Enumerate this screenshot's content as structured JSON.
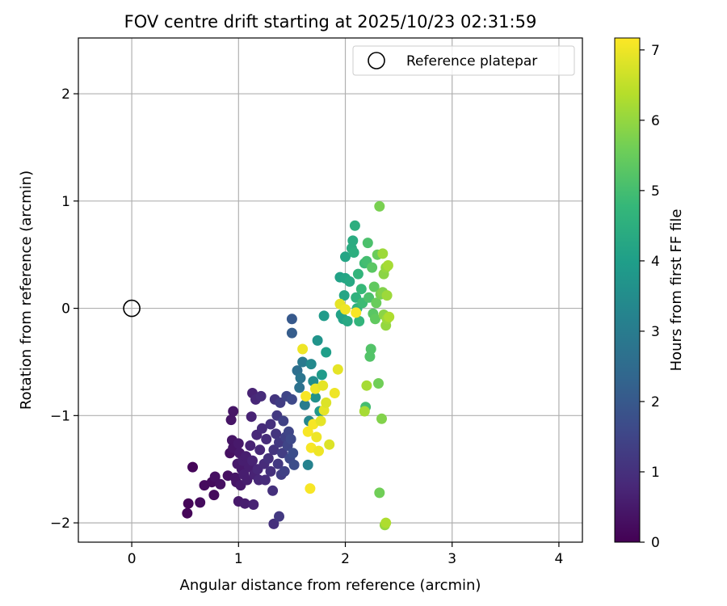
{
  "chart_data": {
    "type": "scatter",
    "title": "FOV centre drift starting at 2025/10/23 02:31:59",
    "xlabel": "Angular distance from reference (arcmin)",
    "ylabel": "Rotation from reference (arcmin)",
    "xlim": [
      -0.5,
      4.22
    ],
    "ylim": [
      -2.18,
      2.52
    ],
    "xticks": [
      0,
      1,
      2,
      3,
      4
    ],
    "xtick_labels": [
      "0",
      "1",
      "2",
      "3",
      "4"
    ],
    "yticks": [
      -2,
      -1,
      0,
      1,
      2
    ],
    "ytick_labels": [
      "−2",
      "−1",
      "0",
      "1",
      "2"
    ],
    "grid": true,
    "legend": {
      "position": "top-right",
      "entries": [
        {
          "label": "Reference platepar",
          "marker": "open-circle"
        }
      ]
    },
    "reference_point": {
      "x": 0,
      "y": 0
    },
    "colorbar": {
      "label": "Hours from first FF file",
      "colormap": "viridis",
      "range": [
        0,
        7.17
      ],
      "ticks": [
        0,
        1,
        2,
        3,
        4,
        5,
        6,
        7
      ],
      "tick_labels": [
        "0",
        "1",
        "2",
        "3",
        "4",
        "5",
        "6",
        "7"
      ],
      "stops": [
        "#440154",
        "#482878",
        "#3e4989",
        "#31688e",
        "#26828e",
        "#1f9e89",
        "#35b779",
        "#6ece58",
        "#b5de2b",
        "#fde725"
      ]
    },
    "series": [
      {
        "name": "FOV centre drift",
        "columns": [
          "x_arcmin",
          "y_arcmin",
          "hours"
        ],
        "points": [
          [
            0.52,
            -1.91,
            0.1
          ],
          [
            0.53,
            -1.82,
            0.1
          ],
          [
            0.57,
            -1.48,
            0.1
          ],
          [
            0.64,
            -1.81,
            0.2
          ],
          [
            0.68,
            -1.65,
            0.2
          ],
          [
            0.75,
            -1.62,
            0.2
          ],
          [
            0.77,
            -1.74,
            0.2
          ],
          [
            0.78,
            -1.57,
            0.3
          ],
          [
            0.83,
            -1.64,
            0.3
          ],
          [
            0.9,
            -1.56,
            0.3
          ],
          [
            0.92,
            -1.35,
            0.3
          ],
          [
            0.93,
            -1.04,
            0.4
          ],
          [
            0.94,
            -1.23,
            0.4
          ],
          [
            0.95,
            -1.3,
            0.4
          ],
          [
            0.95,
            -0.96,
            0.4
          ],
          [
            0.97,
            -1.58,
            0.4
          ],
          [
            0.98,
            -1.62,
            0.4
          ],
          [
            0.99,
            -1.45,
            0.5
          ],
          [
            1.0,
            -1.8,
            0.5
          ],
          [
            1.0,
            -1.26,
            0.5
          ],
          [
            1.01,
            -1.35,
            0.5
          ],
          [
            1.02,
            -1.65,
            0.5
          ],
          [
            1.03,
            -1.5,
            0.5
          ],
          [
            1.04,
            -1.42,
            0.6
          ],
          [
            1.05,
            -1.55,
            0.6
          ],
          [
            1.06,
            -1.82,
            0.6
          ],
          [
            1.07,
            -1.38,
            0.6
          ],
          [
            1.08,
            -1.6,
            0.6
          ],
          [
            1.1,
            -1.48,
            0.6
          ],
          [
            1.11,
            -1.28,
            0.7
          ],
          [
            1.12,
            -1.01,
            0.7
          ],
          [
            1.13,
            -0.79,
            0.7
          ],
          [
            1.13,
            -1.42,
            0.7
          ],
          [
            1.14,
            -1.83,
            0.7
          ],
          [
            1.15,
            -1.55,
            0.7
          ],
          [
            1.16,
            -0.85,
            0.8
          ],
          [
            1.17,
            -1.18,
            0.8
          ],
          [
            1.18,
            -1.5,
            0.8
          ],
          [
            1.19,
            -1.6,
            0.8
          ],
          [
            1.2,
            -1.32,
            0.8
          ],
          [
            1.21,
            -0.82,
            0.9
          ],
          [
            1.22,
            -1.12,
            0.9
          ],
          [
            1.24,
            -1.45,
            0.9
          ],
          [
            1.25,
            -1.6,
            0.9
          ],
          [
            1.26,
            -1.22,
            0.9
          ],
          [
            1.28,
            -1.4,
            1.0
          ],
          [
            1.3,
            -1.08,
            1.0
          ],
          [
            1.3,
            -1.52,
            1.0
          ],
          [
            1.32,
            -1.7,
            1.0
          ],
          [
            1.33,
            -2.01,
            1.0
          ],
          [
            1.33,
            -1.32,
            1.1
          ],
          [
            1.34,
            -0.85,
            1.1
          ],
          [
            1.35,
            -1.17,
            1.1
          ],
          [
            1.36,
            -1.0,
            1.2
          ],
          [
            1.37,
            -1.45,
            1.2
          ],
          [
            1.38,
            -1.94,
            1.2
          ],
          [
            1.38,
            -1.25,
            1.2
          ],
          [
            1.39,
            -0.88,
            1.3
          ],
          [
            1.4,
            -1.55,
            1.3
          ],
          [
            1.41,
            -1.35,
            1.3
          ],
          [
            1.42,
            -1.05,
            1.4
          ],
          [
            1.43,
            -1.52,
            1.4
          ],
          [
            1.44,
            -1.2,
            1.4
          ],
          [
            1.45,
            -0.82,
            1.5
          ],
          [
            1.46,
            -1.28,
            1.5
          ],
          [
            1.47,
            -1.15,
            1.5
          ],
          [
            1.48,
            -1.4,
            1.6
          ],
          [
            1.49,
            -1.22,
            1.6
          ],
          [
            1.5,
            -0.85,
            1.6
          ],
          [
            1.51,
            -1.35,
            1.7
          ],
          [
            1.52,
            -1.46,
            1.7
          ],
          [
            1.5,
            -0.1,
            2.0
          ],
          [
            1.5,
            -0.23,
            2.1
          ],
          [
            1.55,
            -0.58,
            2.6
          ],
          [
            1.57,
            -0.74,
            2.7
          ],
          [
            1.58,
            -0.65,
            2.8
          ],
          [
            1.6,
            -0.5,
            2.9
          ],
          [
            1.62,
            -0.9,
            3.0
          ],
          [
            1.65,
            -1.46,
            3.2
          ],
          [
            1.66,
            -1.05,
            3.3
          ],
          [
            1.68,
            -0.52,
            3.4
          ],
          [
            1.7,
            -0.68,
            3.5
          ],
          [
            1.72,
            -0.83,
            3.6
          ],
          [
            1.74,
            -0.3,
            3.7
          ],
          [
            1.76,
            -0.96,
            3.8
          ],
          [
            1.78,
            -0.62,
            3.9
          ],
          [
            1.8,
            -0.07,
            3.9
          ],
          [
            1.82,
            -0.41,
            4.0
          ],
          [
            1.95,
            0.29,
            4.1
          ],
          [
            1.96,
            -0.06,
            4.1
          ],
          [
            1.98,
            -0.1,
            4.1
          ],
          [
            1.99,
            0.12,
            4.2
          ],
          [
            2.0,
            0.28,
            4.2
          ],
          [
            2.0,
            0.48,
            4.2
          ],
          [
            2.02,
            -0.12,
            4.3
          ],
          [
            2.04,
            0.25,
            4.3
          ],
          [
            2.06,
            0.56,
            4.4
          ],
          [
            2.07,
            0.63,
            4.4
          ],
          [
            2.08,
            0.52,
            4.5
          ],
          [
            2.09,
            0.77,
            4.5
          ],
          [
            2.1,
            0.1,
            4.6
          ],
          [
            2.11,
            0.0,
            4.6
          ],
          [
            2.12,
            0.32,
            4.7
          ],
          [
            2.13,
            -0.12,
            4.7
          ],
          [
            2.15,
            0.18,
            4.8
          ],
          [
            2.16,
            0.05,
            4.9
          ],
          [
            2.18,
            0.42,
            4.9
          ],
          [
            2.19,
            -0.92,
            5.0
          ],
          [
            2.2,
            0.44,
            5.0
          ],
          [
            2.21,
            0.61,
            5.1
          ],
          [
            2.22,
            0.1,
            5.1
          ],
          [
            2.23,
            -0.45,
            5.2
          ],
          [
            2.24,
            -0.38,
            5.2
          ],
          [
            2.25,
            0.38,
            5.3
          ],
          [
            2.26,
            -0.05,
            5.3
          ],
          [
            2.27,
            0.2,
            5.4
          ],
          [
            2.28,
            -0.1,
            5.4
          ],
          [
            2.29,
            0.05,
            5.5
          ],
          [
            2.3,
            0.5,
            5.5
          ],
          [
            2.31,
            -0.7,
            5.6
          ],
          [
            2.32,
            -1.72,
            5.6
          ],
          [
            2.32,
            0.95,
            5.7
          ],
          [
            2.33,
            0.13,
            5.7
          ],
          [
            2.34,
            -1.03,
            5.8
          ],
          [
            2.35,
            0.15,
            5.8
          ],
          [
            2.36,
            -0.06,
            5.9
          ],
          [
            2.36,
            0.32,
            5.9
          ],
          [
            2.37,
            -2.02,
            6.0
          ],
          [
            2.38,
            0.38,
            6.0
          ],
          [
            2.38,
            -0.16,
            6.0
          ],
          [
            2.39,
            -0.1,
            6.1
          ],
          [
            2.39,
            0.12,
            6.1
          ],
          [
            2.35,
            0.51,
            6.1
          ],
          [
            2.2,
            -0.72,
            6.2
          ],
          [
            2.18,
            -0.96,
            6.2
          ],
          [
            2.4,
            0.4,
            6.2
          ],
          [
            2.41,
            -0.08,
            6.3
          ],
          [
            2.38,
            -2.0,
            6.3
          ],
          [
            1.6,
            -0.38,
            7.0
          ],
          [
            1.63,
            -0.82,
            7.1
          ],
          [
            1.65,
            -1.15,
            7.1
          ],
          [
            1.67,
            -1.68,
            7.1
          ],
          [
            1.68,
            -1.3,
            7.1
          ],
          [
            1.7,
            -1.08,
            7.1
          ],
          [
            1.72,
            -0.75,
            7.0
          ],
          [
            1.73,
            -1.2,
            7.0
          ],
          [
            1.75,
            -1.33,
            7.0
          ],
          [
            1.77,
            -1.05,
            6.9
          ],
          [
            1.79,
            -0.72,
            6.9
          ],
          [
            1.8,
            -0.95,
            6.9
          ],
          [
            1.82,
            -0.88,
            6.8
          ],
          [
            1.85,
            -1.27,
            6.8
          ],
          [
            1.9,
            -0.79,
            7.0
          ],
          [
            1.93,
            -0.57,
            6.9
          ],
          [
            1.95,
            0.04,
            6.9
          ],
          [
            2.0,
            -0.01,
            7.0
          ],
          [
            2.1,
            -0.04,
            7.1
          ]
        ]
      }
    ]
  }
}
